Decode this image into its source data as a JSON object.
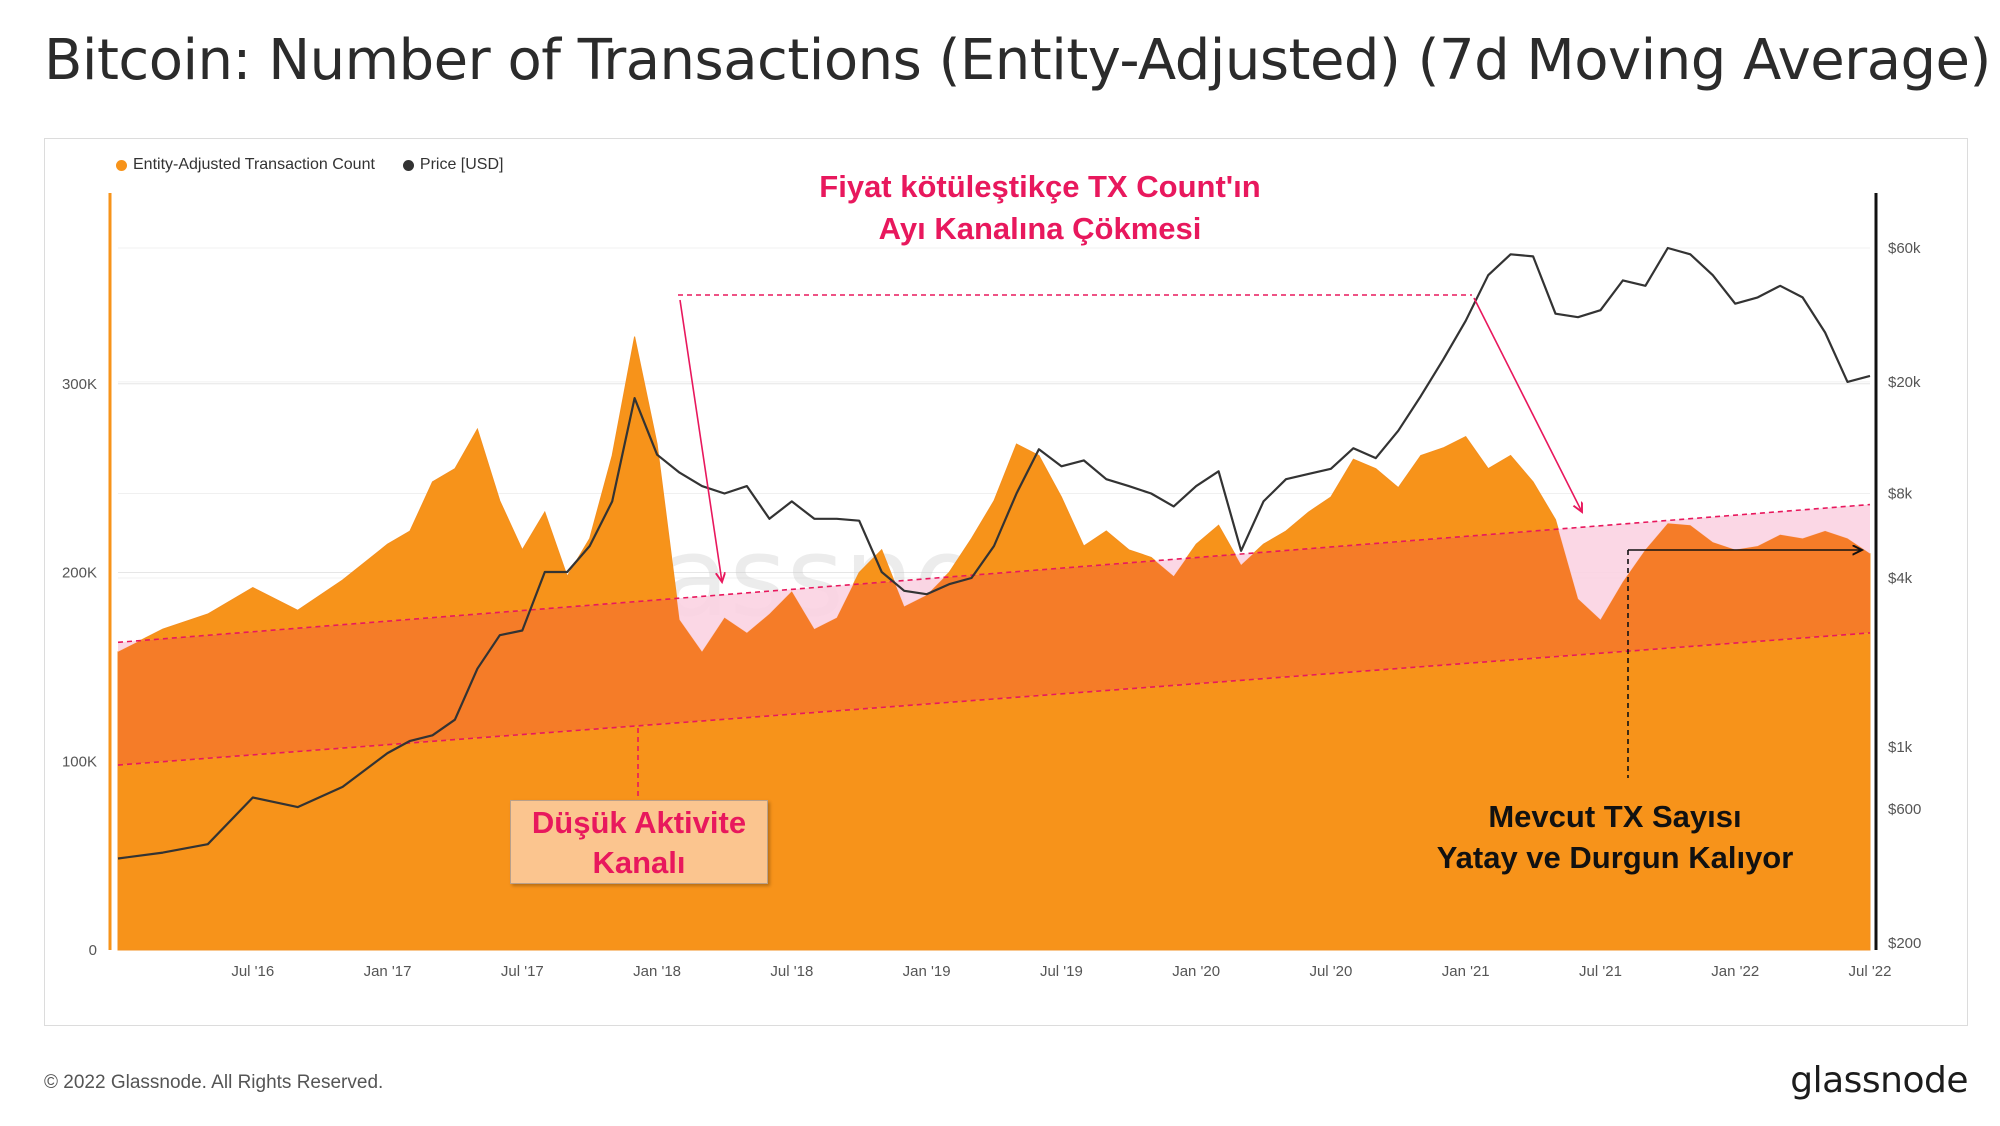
{
  "title": "Bitcoin: Number of Transactions (Entity-Adjusted) (7d Moving Average)",
  "footer": {
    "copyright": "© 2022 Glassnode. All Rights Reserved.",
    "logo": "glassnode"
  },
  "watermark": "glassnode",
  "annotations": {
    "top_line1": "Fiyat kötüleştikçe TX Count'ın",
    "top_line2": "Ayı Kanalına Çökmesi",
    "left_line1": "Düşük Aktivite",
    "left_line2": "Kanalı",
    "right_line1": "Mevcut TX Sayısı",
    "right_line2": "Yatay ve Durgun Kalıyor"
  },
  "colors": {
    "tx": "#f7931a",
    "price": "#333333",
    "accent": "#e8185d",
    "channel": "#f57c28",
    "overshoot": "#fbd3e2"
  },
  "chart_data": {
    "type": "area",
    "legend": [
      "Entity-Adjusted Transaction Count",
      "Price [USD]"
    ],
    "legend_placement": "top-left",
    "x_ticks": [
      "Jul '16",
      "Jan '17",
      "Jul '17",
      "Jan '18",
      "Jul '18",
      "Jan '19",
      "Jul '19",
      "Jan '20",
      "Jul '20",
      "Jan '21",
      "Jul '21",
      "Jan '22",
      "Jul '22"
    ],
    "y_left_ticks": [
      "0",
      "100K",
      "200K",
      "300K"
    ],
    "y_left_values": [
      0,
      100000,
      200000,
      300000
    ],
    "y_left_range": [
      0,
      400000
    ],
    "y_right_ticks": [
      "$200",
      "$600",
      "$1k",
      "$4k",
      "$8k",
      "$20k",
      "$60k"
    ],
    "y_right_values": [
      200,
      600,
      1000,
      4000,
      8000,
      20000,
      60000
    ],
    "y_right_scale": "log",
    "x_start": "2016-01",
    "x_end": "2022-07",
    "series": [
      {
        "name": "Entity-Adjusted Transaction Count",
        "x": [
          "2016-01",
          "2016-03",
          "2016-05",
          "2016-07",
          "2016-09",
          "2016-11",
          "2017-01",
          "2017-02",
          "2017-03",
          "2017-04",
          "2017-05",
          "2017-06",
          "2017-07",
          "2017-08",
          "2017-09",
          "2017-10",
          "2017-11",
          "2017-12",
          "2018-01",
          "2018-02",
          "2018-03",
          "2018-04",
          "2018-05",
          "2018-06",
          "2018-07",
          "2018-08",
          "2018-09",
          "2018-10",
          "2018-11",
          "2018-12",
          "2019-01",
          "2019-02",
          "2019-03",
          "2019-04",
          "2019-05",
          "2019-06",
          "2019-07",
          "2019-08",
          "2019-09",
          "2019-10",
          "2019-11",
          "2019-12",
          "2020-01",
          "2020-02",
          "2020-03",
          "2020-04",
          "2020-05",
          "2020-06",
          "2020-07",
          "2020-08",
          "2020-09",
          "2020-10",
          "2020-11",
          "2020-12",
          "2021-01",
          "2021-02",
          "2021-03",
          "2021-04",
          "2021-05",
          "2021-06",
          "2021-07",
          "2021-08",
          "2021-09",
          "2021-10",
          "2021-11",
          "2021-12",
          "2022-01",
          "2022-02",
          "2022-03",
          "2022-04",
          "2022-05",
          "2022-06",
          "2022-07"
        ],
        "values": [
          158000,
          170000,
          178000,
          192000,
          180000,
          196000,
          215000,
          222000,
          248000,
          255000,
          276000,
          238000,
          212000,
          232000,
          198000,
          218000,
          262000,
          325000,
          268000,
          175000,
          158000,
          176000,
          168000,
          178000,
          190000,
          170000,
          176000,
          200000,
          212000,
          182000,
          188000,
          200000,
          218000,
          238000,
          268000,
          262000,
          240000,
          214000,
          222000,
          212000,
          208000,
          198000,
          215000,
          225000,
          204000,
          215000,
          222000,
          232000,
          240000,
          260000,
          255000,
          245000,
          262000,
          266000,
          272000,
          255000,
          262000,
          248000,
          228000,
          186000,
          175000,
          195000,
          212000,
          226000,
          225000,
          216000,
          212000,
          214000,
          220000,
          218000,
          222000,
          218000,
          210000
        ]
      },
      {
        "name": "Price [USD]",
        "x": [
          "2016-01",
          "2016-03",
          "2016-05",
          "2016-07",
          "2016-09",
          "2016-11",
          "2017-01",
          "2017-02",
          "2017-03",
          "2017-04",
          "2017-05",
          "2017-06",
          "2017-07",
          "2017-08",
          "2017-09",
          "2017-10",
          "2017-11",
          "2017-12",
          "2018-01",
          "2018-02",
          "2018-03",
          "2018-04",
          "2018-05",
          "2018-06",
          "2018-07",
          "2018-08",
          "2018-09",
          "2018-10",
          "2018-11",
          "2018-12",
          "2019-01",
          "2019-02",
          "2019-03",
          "2019-04",
          "2019-05",
          "2019-06",
          "2019-07",
          "2019-08",
          "2019-09",
          "2019-10",
          "2019-11",
          "2019-12",
          "2020-01",
          "2020-02",
          "2020-03",
          "2020-04",
          "2020-05",
          "2020-06",
          "2020-07",
          "2020-08",
          "2020-09",
          "2020-10",
          "2020-11",
          "2020-12",
          "2021-01",
          "2021-02",
          "2021-03",
          "2021-04",
          "2021-05",
          "2021-06",
          "2021-07",
          "2021-08",
          "2021-09",
          "2021-10",
          "2021-11",
          "2021-12",
          "2022-01",
          "2022-02",
          "2022-03",
          "2022-04",
          "2022-05",
          "2022-06",
          "2022-07"
        ],
        "values": [
          400,
          420,
          450,
          660,
          610,
          720,
          950,
          1050,
          1100,
          1250,
          1900,
          2500,
          2600,
          4200,
          4200,
          5200,
          7500,
          17500,
          11000,
          9500,
          8500,
          8000,
          8500,
          6500,
          7500,
          6500,
          6500,
          6400,
          4200,
          3600,
          3500,
          3800,
          4000,
          5200,
          8000,
          11500,
          10000,
          10500,
          9000,
          8500,
          8000,
          7200,
          8500,
          9600,
          5000,
          7500,
          9000,
          9400,
          9800,
          11600,
          10700,
          13400,
          17800,
          24000,
          33000,
          48000,
          57000,
          56000,
          35000,
          34000,
          36000,
          46000,
          44000,
          60000,
          57000,
          48000,
          38000,
          40000,
          44000,
          40000,
          30000,
          20000,
          21000
        ]
      }
    ],
    "low_activity_channel": {
      "lower": {
        "start": [
          "2016-01",
          98000
        ],
        "end": [
          "2022-07",
          168000
        ]
      },
      "upper": {
        "start": [
          "2016-01",
          163000
        ],
        "end": [
          "2022-07",
          236000
        ]
      }
    }
  }
}
